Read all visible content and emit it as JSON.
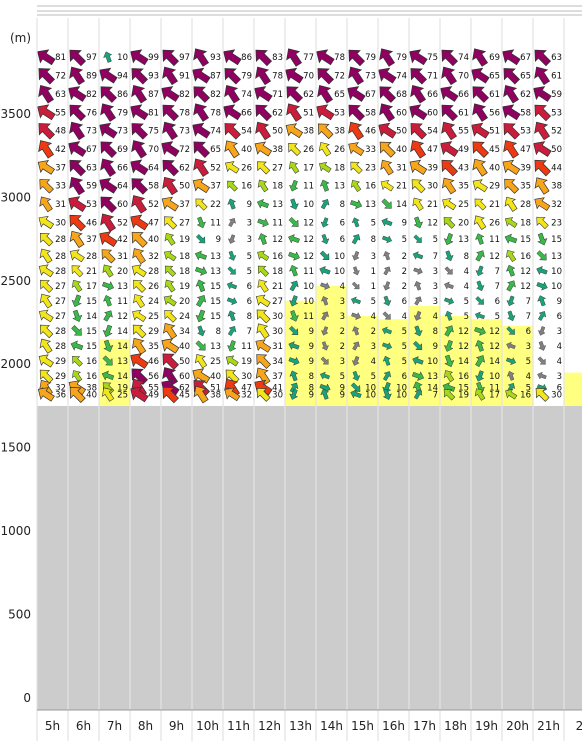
{
  "chart_data": {
    "type": "heatmap",
    "ylabel": "(m)",
    "ylim": [
      0,
      4000
    ],
    "yticks": [
      0,
      500,
      1000,
      1500,
      2000,
      2500,
      3000,
      3500
    ],
    "categories": [
      "5h",
      "6h",
      "7h",
      "8h",
      "9h",
      "10h",
      "11h",
      "12h",
      "13h",
      "14h",
      "15h",
      "16h",
      "17h",
      "18h",
      "19h",
      "20h",
      "21h",
      "2"
    ],
    "ground_altitude": 1750,
    "levels": [
      3840,
      3730,
      3620,
      3510,
      3400,
      3290,
      3180,
      3070,
      2960,
      2850,
      2750,
      2650,
      2560,
      2470,
      2380,
      2290,
      2200,
      2110,
      2020,
      1930,
      1860,
      1820
    ],
    "speed_rows": [
      [
        81,
        97,
        10,
        99,
        97,
        93,
        86,
        83,
        77,
        78,
        79,
        79,
        75,
        74,
        69,
        67,
        63,
        ""
      ],
      [
        72,
        89,
        94,
        93,
        91,
        87,
        79,
        78,
        70,
        72,
        73,
        74,
        71,
        70,
        65,
        65,
        61,
        ""
      ],
      [
        63,
        82,
        86,
        87,
        82,
        82,
        74,
        71,
        62,
        65,
        67,
        68,
        66,
        66,
        61,
        62,
        59,
        ""
      ],
      [
        55,
        76,
        79,
        81,
        78,
        78,
        66,
        62,
        51,
        53,
        58,
        60,
        60,
        61,
        56,
        58,
        53,
        ""
      ],
      [
        48,
        73,
        73,
        75,
        73,
        74,
        54,
        50,
        38,
        38,
        46,
        50,
        54,
        55,
        51,
        53,
        52,
        ""
      ],
      [
        42,
        67,
        69,
        70,
        72,
        65,
        40,
        38,
        26,
        26,
        33,
        40,
        47,
        49,
        45,
        47,
        50,
        ""
      ],
      [
        37,
        63,
        66,
        64,
        62,
        52,
        26,
        27,
        17,
        18,
        23,
        31,
        39,
        43,
        40,
        39,
        44,
        ""
      ],
      [
        33,
        59,
        64,
        58,
        50,
        37,
        16,
        18,
        11,
        13,
        16,
        21,
        30,
        35,
        29,
        35,
        38,
        ""
      ],
      [
        31,
        53,
        60,
        52,
        37,
        22,
        9,
        13,
        10,
        8,
        13,
        14,
        21,
        25,
        21,
        28,
        32,
        ""
      ],
      [
        30,
        46,
        52,
        47,
        27,
        11,
        3,
        11,
        12,
        6,
        5,
        9,
        12,
        20,
        26,
        18,
        23,
        ""
      ],
      [
        28,
        37,
        42,
        40,
        19,
        9,
        3,
        12,
        12,
        6,
        8,
        5,
        5,
        13,
        11,
        15,
        15,
        ""
      ],
      [
        28,
        28,
        31,
        32,
        18,
        13,
        5,
        16,
        12,
        10,
        3,
        2,
        7,
        8,
        12,
        16,
        13,
        ""
      ],
      [
        28,
        21,
        20,
        28,
        18,
        13,
        5,
        18,
        11,
        10,
        1,
        2,
        3,
        4,
        7,
        12,
        10,
        ""
      ],
      [
        27,
        17,
        13,
        26,
        19,
        15,
        6,
        21,
        10,
        4,
        1,
        2,
        3,
        4,
        7,
        12,
        10,
        ""
      ],
      [
        27,
        15,
        11,
        24,
        20,
        15,
        6,
        27,
        10,
        3,
        5,
        6,
        3,
        5,
        6,
        7,
        9,
        ""
      ],
      [
        27,
        14,
        12,
        25,
        24,
        15,
        8,
        30,
        11,
        3,
        4,
        4,
        4,
        5,
        5,
        7,
        6,
        ""
      ],
      [
        28,
        15,
        14,
        29,
        34,
        8,
        7,
        30,
        9,
        2,
        2,
        5,
        8,
        12,
        12,
        6,
        3,
        ""
      ],
      [
        28,
        15,
        14,
        35,
        40,
        13,
        11,
        31,
        9,
        2,
        3,
        5,
        9,
        12,
        12,
        3,
        4,
        ""
      ],
      [
        29,
        16,
        13,
        46,
        50,
        25,
        19,
        34,
        9,
        3,
        4,
        5,
        10,
        14,
        14,
        5,
        4,
        ""
      ],
      [
        29,
        16,
        14,
        56,
        60,
        40,
        30,
        37,
        8,
        5,
        5,
        6,
        13,
        16,
        10,
        4,
        3,
        ""
      ],
      [
        32,
        38,
        19,
        55,
        62,
        51,
        47,
        41,
        8,
        9,
        10,
        10,
        14,
        15,
        11,
        5,
        6,
        ""
      ],
      [
        36,
        40,
        25,
        49,
        45,
        38,
        32,
        30,
        9,
        9,
        10,
        10,
        7,
        19,
        17,
        16,
        30,
        ""
      ]
    ],
    "thermal_tops": [
      1750,
      1750,
      2150,
      1750,
      1750,
      1750,
      1750,
      1750,
      2380,
      2470,
      2290,
      2270,
      2350,
      2290,
      2270,
      2230,
      1750,
      1950
    ],
    "colors": {
      "ground": "#cccccc",
      "thermal": "#ffff80",
      "speed_scale": [
        "#808080",
        "#1aa37a",
        "#3bb84a",
        "#a8d818",
        "#f2e61b",
        "#f7a51b",
        "#ee3a12",
        "#cc1c3c",
        "#900060"
      ]
    }
  }
}
